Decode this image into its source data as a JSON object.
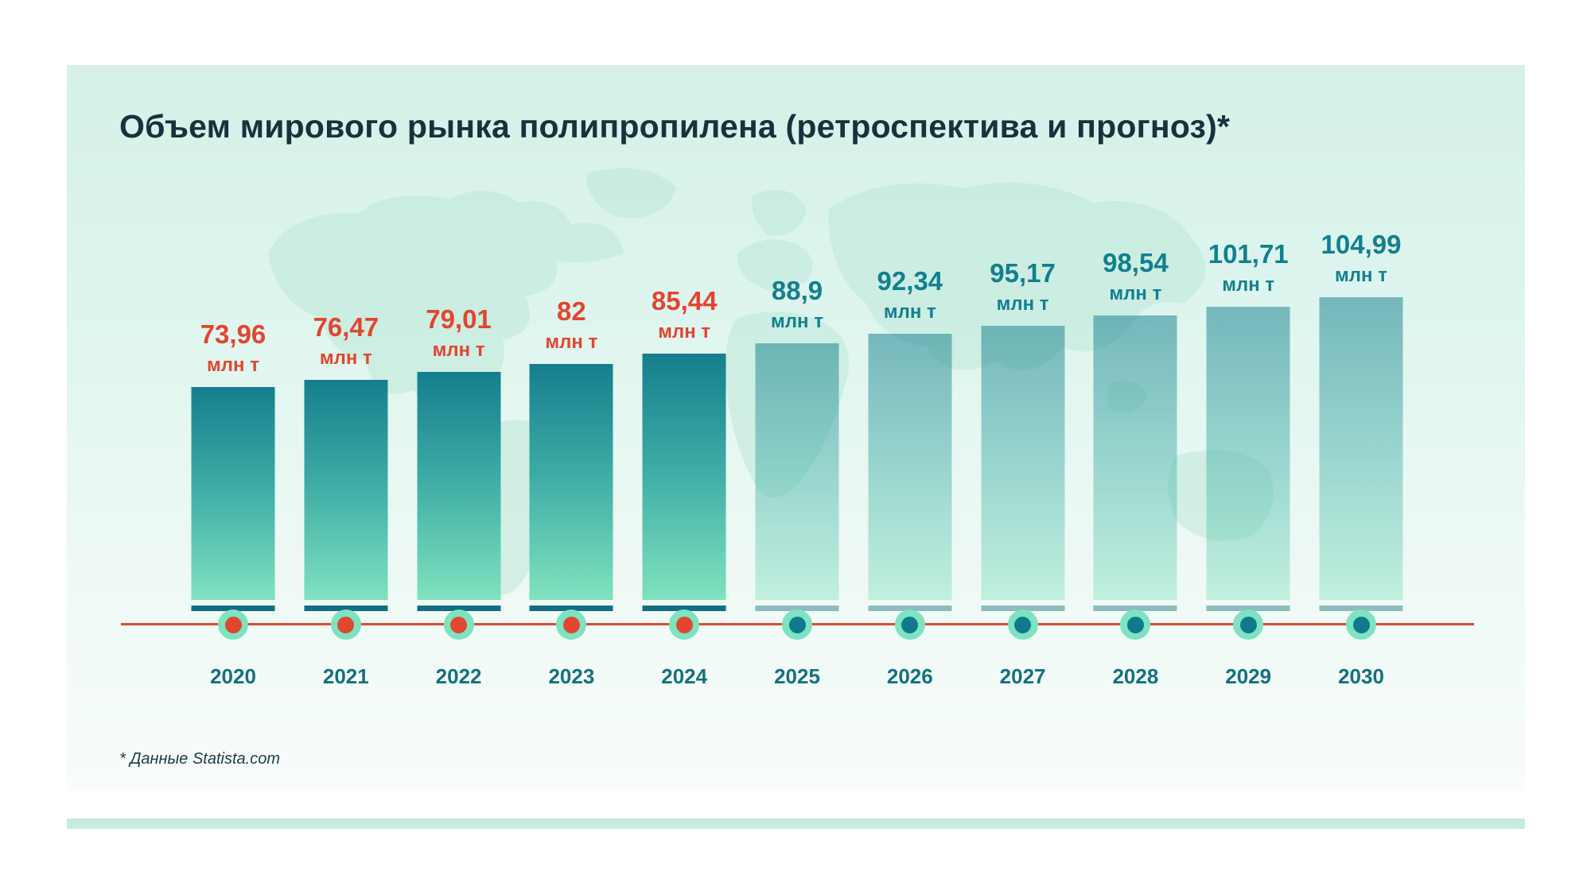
{
  "title": "Объем мирового рынка полипропилена (ретроспектива и прогноз)*",
  "footnote": "* Данные Statista.com",
  "colors": {
    "historical_accent": "#e2452f",
    "forecast_accent": "#11808f",
    "axis_line": "#e04a32",
    "dot_outer": "#7de3c1",
    "dot_core_historical": "#e2462e",
    "dot_core_forecast": "#10798c",
    "bar_gradient_top": "#157e8d",
    "bar_gradient_bottom": "#80e2bf",
    "underline": "#136e81",
    "year_label": "#13717f",
    "title_color": "#15323d",
    "card_background_top": "#d5f1e8",
    "card_background_bottom": "#f8fdfb",
    "accent_strip": "#c5ecdd"
  },
  "chart_data": {
    "type": "bar",
    "title": "Объем мирового рынка полипропилена (ретроспектива и прогноз)",
    "xlabel": "",
    "ylabel": "млн т",
    "unit": "млн т",
    "ylim": [
      0,
      110
    ],
    "grid": false,
    "legend": "none",
    "source": "Statista.com",
    "categories": [
      "2020",
      "2021",
      "2022",
      "2023",
      "2024",
      "2025",
      "2026",
      "2027",
      "2028",
      "2029",
      "2030"
    ],
    "values": [
      73.96,
      76.47,
      79.01,
      82,
      85.44,
      88.9,
      92.34,
      95.17,
      98.54,
      101.71,
      104.99
    ],
    "items": [
      {
        "year": "2020",
        "value": 73.96,
        "display": "73,96",
        "kind": "historical"
      },
      {
        "year": "2021",
        "value": 76.47,
        "display": "76,47",
        "kind": "historical"
      },
      {
        "year": "2022",
        "value": 79.01,
        "display": "79,01",
        "kind": "historical"
      },
      {
        "year": "2023",
        "value": 82,
        "display": "82",
        "kind": "historical"
      },
      {
        "year": "2024",
        "value": 85.44,
        "display": "85,44",
        "kind": "historical"
      },
      {
        "year": "2025",
        "value": 88.9,
        "display": "88,9",
        "kind": "forecast"
      },
      {
        "year": "2026",
        "value": 92.34,
        "display": "92,34",
        "kind": "forecast"
      },
      {
        "year": "2027",
        "value": 95.17,
        "display": "95,17",
        "kind": "forecast"
      },
      {
        "year": "2028",
        "value": 98.54,
        "display": "98,54",
        "kind": "forecast"
      },
      {
        "year": "2029",
        "value": 101.71,
        "display": "101,71",
        "kind": "forecast"
      },
      {
        "year": "2030",
        "value": 104.99,
        "display": "104,99",
        "kind": "forecast"
      }
    ]
  }
}
